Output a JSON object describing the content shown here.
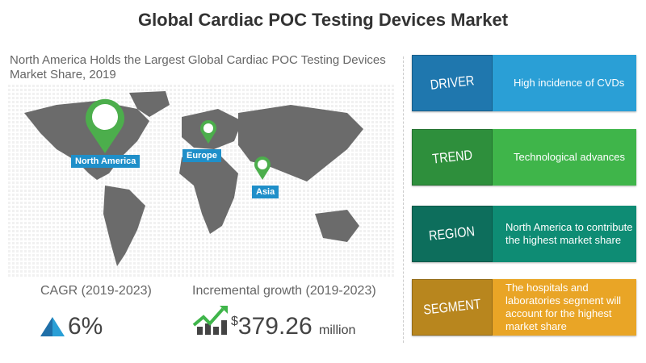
{
  "title": "Global Cardiac POC Testing Devices Market",
  "subtitle": "North America Holds the Largest Global Cardiac POC Testing Devices Market Share, 2019",
  "map": {
    "regions": [
      "North America",
      "Europe",
      "Asia"
    ],
    "pin_color": "#4cae4c",
    "label_color": "#1f8fc9"
  },
  "cards": [
    {
      "label": "DRIVER",
      "text": "High incidence of CVDs",
      "dark": "#1f77ae",
      "light": "#2a9fd6"
    },
    {
      "label": "TREND",
      "text": "Technological advances",
      "dark": "#2e8f3c",
      "light": "#3fb54a"
    },
    {
      "label": "REGION",
      "text": "North America to contribute the highest market share",
      "dark": "#0d6e5c",
      "light": "#0e8c74"
    },
    {
      "label": "SEGMENT",
      "text": "The hospitals and laboratories segment will account for the highest market share",
      "dark": "#b8861e",
      "light": "#e9a526"
    }
  ],
  "cagr": {
    "label": "CAGR (2019-2023)",
    "value": "6%",
    "icon": "triangle-up-icon"
  },
  "growth": {
    "label": "Incremental growth (2019-2023)",
    "currency": "$",
    "value": "379.26",
    "unit": "million",
    "icon": "growth-chart-icon"
  }
}
